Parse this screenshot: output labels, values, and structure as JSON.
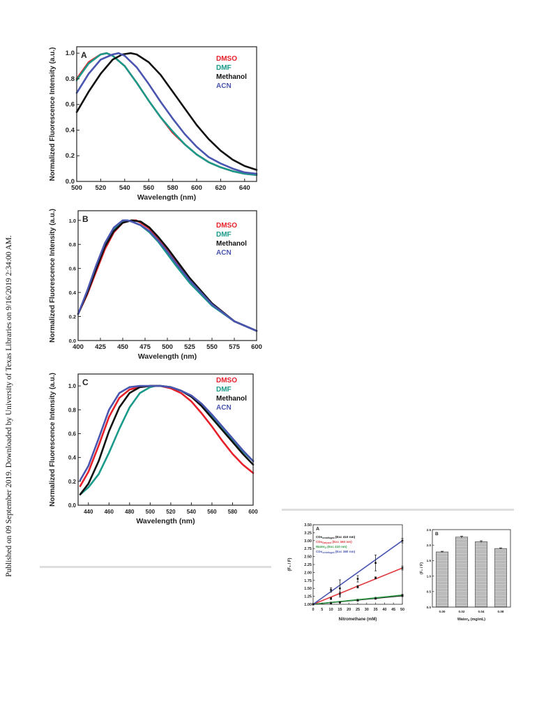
{
  "side_note": "Published on 09 September 2019. Downloaded by University of Texas Libraries on 9/16/2019 2:34:00 AM.",
  "chart_data": [
    {
      "type": "line",
      "panel_label": "A",
      "xlabel": "Wavelength (nm)",
      "ylabel": "Normalized Fluorescence Intensity (a.u.)",
      "xlim": [
        500,
        650
      ],
      "ylim": [
        0,
        1.05
      ],
      "xticks": [
        500,
        520,
        540,
        560,
        580,
        600,
        620,
        640
      ],
      "yticks": [
        0.0,
        0.2,
        0.4,
        0.6,
        0.8,
        1.0
      ],
      "ytick_labels": [
        "0.0",
        "0.2",
        "0.4",
        "0.6",
        "0.8",
        "1.0"
      ],
      "legend_position": "top-right",
      "series": [
        {
          "name": "DMSO",
          "color": "#e8202a",
          "x": [
            500,
            510,
            520,
            525,
            530,
            540,
            550,
            560,
            570,
            580,
            590,
            600,
            610,
            620,
            630,
            640,
            650
          ],
          "y": [
            0.8,
            0.93,
            0.99,
            1.0,
            0.98,
            0.9,
            0.77,
            0.63,
            0.5,
            0.38,
            0.29,
            0.21,
            0.15,
            0.11,
            0.08,
            0.06,
            0.05
          ]
        },
        {
          "name": "DMF",
          "color": "#1a9a8a",
          "x": [
            500,
            510,
            520,
            525,
            530,
            540,
            550,
            560,
            570,
            580,
            590,
            600,
            610,
            620,
            630,
            640,
            650
          ],
          "y": [
            0.79,
            0.92,
            0.99,
            1.0,
            0.98,
            0.9,
            0.77,
            0.63,
            0.5,
            0.39,
            0.29,
            0.21,
            0.15,
            0.11,
            0.08,
            0.06,
            0.05
          ]
        },
        {
          "name": "Methanol",
          "color": "#111111",
          "x": [
            500,
            510,
            520,
            530,
            538,
            545,
            550,
            560,
            570,
            580,
            590,
            600,
            610,
            620,
            630,
            640,
            650
          ],
          "y": [
            0.54,
            0.7,
            0.84,
            0.95,
            0.99,
            1.0,
            0.99,
            0.93,
            0.83,
            0.7,
            0.57,
            0.44,
            0.33,
            0.24,
            0.17,
            0.12,
            0.09
          ]
        },
        {
          "name": "ACN",
          "color": "#4a55b0",
          "x": [
            500,
            510,
            520,
            530,
            535,
            540,
            550,
            560,
            570,
            580,
            590,
            600,
            610,
            620,
            630,
            640,
            650
          ],
          "y": [
            0.69,
            0.84,
            0.95,
            0.99,
            1.0,
            0.98,
            0.89,
            0.76,
            0.62,
            0.49,
            0.37,
            0.27,
            0.19,
            0.14,
            0.1,
            0.07,
            0.06
          ]
        }
      ]
    },
    {
      "type": "line",
      "panel_label": "B",
      "xlabel": "Wavelength (nm)",
      "ylabel": "Normalized Fluorescence Intensity (a.u.)",
      "xlim": [
        400,
        600
      ],
      "ylim": [
        0,
        1.08
      ],
      "xticks": [
        400,
        425,
        450,
        475,
        500,
        525,
        550,
        575,
        600
      ],
      "yticks": [
        0.0,
        0.2,
        0.4,
        0.6,
        0.8,
        1.0
      ],
      "ytick_labels": [
        "0.0",
        "0.2",
        "0.4",
        "0.6",
        "0.8",
        "1.0"
      ],
      "legend_position": "top-right",
      "series": [
        {
          "name": "DMSO",
          "color": "#e8202a",
          "x": [
            400,
            410,
            420,
            430,
            440,
            450,
            460,
            465,
            470,
            480,
            490,
            500,
            510,
            525,
            550,
            575,
            600
          ],
          "y": [
            0.22,
            0.38,
            0.57,
            0.76,
            0.9,
            0.98,
            1.0,
            1.0,
            0.98,
            0.93,
            0.85,
            0.76,
            0.66,
            0.51,
            0.3,
            0.16,
            0.08
          ]
        },
        {
          "name": "DMF",
          "color": "#1a9a8a",
          "x": [
            400,
            410,
            420,
            430,
            440,
            450,
            455,
            460,
            470,
            480,
            490,
            500,
            510,
            525,
            550,
            575,
            600
          ],
          "y": [
            0.22,
            0.4,
            0.6,
            0.79,
            0.92,
            0.99,
            1.0,
            0.99,
            0.96,
            0.9,
            0.82,
            0.72,
            0.62,
            0.48,
            0.29,
            0.16,
            0.08
          ]
        },
        {
          "name": "Methanol",
          "color": "#111111",
          "x": [
            400,
            410,
            420,
            430,
            440,
            450,
            460,
            470,
            480,
            490,
            500,
            510,
            525,
            550,
            575,
            600
          ],
          "y": [
            0.22,
            0.39,
            0.59,
            0.78,
            0.91,
            0.98,
            1.0,
            0.99,
            0.94,
            0.86,
            0.77,
            0.67,
            0.52,
            0.31,
            0.16,
            0.08
          ]
        },
        {
          "name": "ACN",
          "color": "#4a55b0",
          "x": [
            400,
            410,
            420,
            430,
            440,
            450,
            455,
            460,
            470,
            480,
            490,
            500,
            510,
            525,
            550,
            575,
            600
          ],
          "y": [
            0.22,
            0.41,
            0.62,
            0.81,
            0.94,
            1.0,
            1.0,
            0.99,
            0.96,
            0.91,
            0.83,
            0.74,
            0.64,
            0.5,
            0.3,
            0.16,
            0.08
          ]
        }
      ]
    },
    {
      "type": "line",
      "panel_label": "C",
      "xlabel": "Wavelength (nm)",
      "ylabel": "Normalized Fluorescence Intensity (a.u.)",
      "xlim": [
        430,
        600
      ],
      "ylim": [
        0,
        1.1
      ],
      "xticks": [
        440,
        460,
        480,
        500,
        520,
        540,
        560,
        580,
        600
      ],
      "yticks": [
        0.0,
        0.2,
        0.4,
        0.6,
        0.8,
        1.0
      ],
      "ytick_labels": [
        "0.0",
        "0.2",
        "0.4",
        "0.6",
        "0.8",
        "1.0"
      ],
      "legend_position": "top-right",
      "series": [
        {
          "name": "DMSO",
          "color": "#e8202a",
          "x": [
            432,
            440,
            450,
            460,
            470,
            480,
            490,
            500,
            510,
            520,
            530,
            540,
            550,
            560,
            570,
            580,
            590,
            600
          ],
          "y": [
            0.16,
            0.28,
            0.5,
            0.74,
            0.9,
            0.97,
            0.99,
            1.0,
            1.0,
            0.98,
            0.94,
            0.87,
            0.77,
            0.66,
            0.54,
            0.43,
            0.34,
            0.27
          ]
        },
        {
          "name": "DMF",
          "color": "#1a9a8a",
          "x": [
            432,
            440,
            450,
            460,
            470,
            480,
            490,
            500,
            505,
            510,
            520,
            530,
            540,
            550,
            560,
            570,
            580,
            590,
            600
          ],
          "y": [
            0.09,
            0.15,
            0.26,
            0.44,
            0.64,
            0.82,
            0.94,
            0.99,
            1.0,
            1.0,
            0.99,
            0.96,
            0.91,
            0.84,
            0.75,
            0.65,
            0.55,
            0.45,
            0.37
          ]
        },
        {
          "name": "Methanol",
          "color": "#111111",
          "x": [
            432,
            440,
            450,
            460,
            470,
            480,
            490,
            500,
            510,
            520,
            530,
            540,
            550,
            560,
            570,
            580,
            590,
            600
          ],
          "y": [
            0.09,
            0.18,
            0.37,
            0.62,
            0.82,
            0.94,
            0.99,
            1.0,
            1.0,
            0.99,
            0.96,
            0.91,
            0.83,
            0.73,
            0.63,
            0.53,
            0.43,
            0.34
          ]
        },
        {
          "name": "ACN",
          "color": "#4a55b0",
          "x": [
            432,
            440,
            450,
            460,
            470,
            480,
            490,
            500,
            510,
            520,
            530,
            540,
            550,
            560,
            570,
            580,
            590,
            600
          ],
          "y": [
            0.21,
            0.33,
            0.56,
            0.8,
            0.94,
            0.99,
            1.0,
            1.0,
            1.0,
            0.99,
            0.96,
            0.92,
            0.85,
            0.76,
            0.66,
            0.56,
            0.46,
            0.37
          ]
        }
      ]
    },
    {
      "type": "scatter",
      "panel_label": "A",
      "xlabel": "Nitromethane (mM)",
      "ylabel": "(F₀ / F)",
      "xlim": [
        0,
        50
      ],
      "ylim": [
        1.0,
        3.5
      ],
      "xticks": [
        0,
        5,
        10,
        15,
        20,
        25,
        30,
        35,
        40,
        45,
        50
      ],
      "yticks": [
        1.0,
        1.25,
        1.5,
        1.75,
        2.0,
        2.25,
        2.5,
        2.75,
        3.0,
        3.25,
        3.5
      ],
      "ytick_labels": [
        "1.00",
        "1.25",
        "1.50",
        "1.75",
        "2.00",
        "2.25",
        "2.50",
        "2.75",
        "3.00",
        "3.25",
        "3.50"
      ],
      "legend_position": "top-left",
      "series": [
        {
          "name": "CDs",
          "sub": "centrifuged",
          "exc": "(Exc 410 nm)",
          "color": "#111111",
          "x": [
            0,
            10,
            15,
            25,
            35,
            50
          ],
          "y": [
            1.0,
            1.05,
            1.07,
            1.13,
            1.19,
            1.27
          ],
          "err": [
            0.01,
            0.02,
            0.02,
            0.03,
            0.03,
            0.03
          ]
        },
        {
          "name": "CDs",
          "sub": "Dialyzed",
          "exc": "(Exc 360 nm)",
          "color": "#e03a3e",
          "x": [
            0,
            10,
            15,
            25,
            35,
            50
          ],
          "y": [
            1.0,
            1.18,
            1.33,
            1.55,
            1.83,
            2.14
          ],
          "err": [
            0.01,
            0.03,
            0.05,
            0.04,
            0.03,
            0.06
          ]
        },
        {
          "name": "Water",
          "sub": "D",
          "exc": "(Exc 410 nm)",
          "color": "#2e9a46",
          "x": [
            0,
            10,
            15,
            25,
            35,
            50
          ],
          "y": [
            1.0,
            1.03,
            1.06,
            1.12,
            1.18,
            1.29
          ],
          "err": [
            0.01,
            0.01,
            0.02,
            0.02,
            0.02,
            0.02
          ]
        },
        {
          "name": "CDs",
          "sub": "centrifuged",
          "exc": "(Exc 380 nm)",
          "color": "#4a55b0",
          "x": [
            0,
            10,
            15,
            25,
            35,
            50
          ],
          "y": [
            1.0,
            1.45,
            1.5,
            1.8,
            2.3,
            3.0
          ],
          "err": [
            0.02,
            0.07,
            0.27,
            0.1,
            0.25,
            0.07
          ]
        }
      ]
    },
    {
      "type": "bar",
      "panel_label": "B",
      "xlabel": "Water",
      "xlabel_sub": "D",
      "xlabel_suffix": " (mg/mL)",
      "ylabel": "(F₀ / F)",
      "ylim": [
        0,
        2.5
      ],
      "yticks": [
        0.0,
        0.5,
        1.0,
        1.5,
        2.0,
        2.5
      ],
      "ytick_labels": [
        "0.0",
        "0.5",
        "1.0",
        "1.5",
        "2.0",
        "2.5"
      ],
      "categories": [
        "0.00",
        "0.02",
        "0.04",
        "0.08"
      ],
      "values": [
        1.78,
        2.26,
        2.11,
        1.89
      ],
      "errors": [
        0.02,
        0.03,
        0.03,
        0.02
      ],
      "bar_color": "#c8c8c8"
    }
  ]
}
